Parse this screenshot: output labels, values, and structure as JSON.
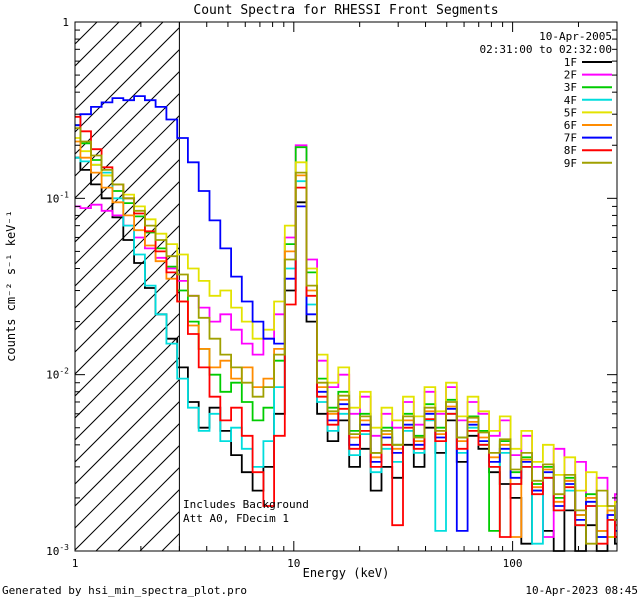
{
  "page": {
    "title": "Count Spectra for RHESSI Front Segments",
    "date_label": "10-Apr-2005",
    "time_range": "02:31:00 to 02:32:00",
    "includes_background": "Includes Background",
    "att_label": "Att A0, FDecim 1",
    "footer_left": "Generated by hsi_min_spectra_plot.pro",
    "footer_right": "10-Apr-2023 08:45"
  },
  "chart_data": {
    "type": "line",
    "mode": "histogram-step",
    "title": "Count Spectra for RHESSI Front Segments",
    "xlabel": "Energy (keV)",
    "ylabel": "counts cm⁻² s⁻¹ keV⁻¹",
    "xscale": "log",
    "yscale": "log",
    "xlim": [
      1,
      300
    ],
    "ylim": [
      0.001,
      1.0
    ],
    "grid": false,
    "legend_position": "upper-right",
    "hatch_region_kev": [
      1,
      3
    ],
    "x": [
      1.0,
      1.12,
      1.25,
      1.4,
      1.57,
      1.76,
      1.97,
      2.21,
      2.47,
      2.77,
      3.1,
      3.47,
      3.89,
      4.36,
      4.88,
      5.47,
      6.12,
      6.86,
      7.68,
      8.6,
      9.63,
      10.8,
      12.1,
      13.5,
      15.1,
      16.9,
      19.0,
      21.2,
      23.8,
      26.6,
      29.8,
      33.4,
      37.4,
      41.9,
      46.9,
      52.5,
      58.8,
      65.9,
      73.8,
      82.6,
      92.5,
      103.6,
      116.0,
      130.0,
      145.6,
      163.0,
      182.6,
      204.5,
      229.0,
      256.5,
      287.2,
      300.0
    ],
    "series": [
      {
        "name": "1F",
        "color": "#000000",
        "values": [
          0.17,
          0.145,
          0.12,
          0.1,
          0.078,
          0.058,
          0.043,
          0.031,
          0.022,
          0.016,
          0.011,
          0.007,
          0.005,
          0.0065,
          0.0048,
          0.0035,
          0.0028,
          0.0022,
          0.003,
          0.006,
          0.03,
          0.095,
          0.02,
          0.006,
          0.0042,
          0.0055,
          0.003,
          0.0038,
          0.0022,
          0.003,
          0.0026,
          0.004,
          0.003,
          0.005,
          0.0036,
          0.0055,
          0.0032,
          0.0045,
          0.0038,
          0.0028,
          0.0024,
          0.002,
          0.0011,
          0.0022,
          0.0013,
          0.001,
          0.0017,
          0.001,
          0.0014,
          0.001,
          0.0012,
          0.0011
        ]
      },
      {
        "name": "2F",
        "color": "#ff00ff",
        "values": [
          0.09,
          0.088,
          0.092,
          0.085,
          0.08,
          0.07,
          0.06,
          0.052,
          0.046,
          0.04,
          0.034,
          0.028,
          0.024,
          0.02,
          0.022,
          0.018,
          0.015,
          0.013,
          0.016,
          0.022,
          0.06,
          0.2,
          0.045,
          0.012,
          0.0085,
          0.01,
          0.006,
          0.0075,
          0.0045,
          0.006,
          0.005,
          0.007,
          0.0052,
          0.008,
          0.006,
          0.0085,
          0.0055,
          0.007,
          0.006,
          0.0045,
          0.0055,
          0.0035,
          0.0045,
          0.003,
          0.0012,
          0.0038,
          0.0025,
          0.0032,
          0.002,
          0.0026,
          0.0016,
          0.0021
        ]
      },
      {
        "name": "3F",
        "color": "#00cc00",
        "values": [
          0.26,
          0.205,
          0.165,
          0.135,
          0.11,
          0.094,
          0.079,
          0.064,
          0.052,
          0.041,
          0.03,
          0.02,
          0.014,
          0.01,
          0.008,
          0.009,
          0.007,
          0.0055,
          0.0065,
          0.012,
          0.055,
          0.195,
          0.038,
          0.0095,
          0.0065,
          0.008,
          0.0048,
          0.006,
          0.0036,
          0.005,
          0.004,
          0.006,
          0.0045,
          0.0068,
          0.005,
          0.0072,
          0.0044,
          0.0058,
          0.0048,
          0.0013,
          0.0042,
          0.0028,
          0.0034,
          0.0024,
          0.003,
          0.002,
          0.0026,
          0.0016,
          0.0021,
          0.0013,
          0.0017,
          0.0014
        ]
      },
      {
        "name": "4F",
        "color": "#00dddd",
        "values": [
          0.17,
          0.162,
          0.155,
          0.14,
          0.1,
          0.07,
          0.048,
          0.032,
          0.022,
          0.015,
          0.0095,
          0.0065,
          0.0048,
          0.006,
          0.0042,
          0.005,
          0.0038,
          0.003,
          0.0042,
          0.0085,
          0.04,
          0.125,
          0.025,
          0.007,
          0.0048,
          0.006,
          0.0035,
          0.0046,
          0.0028,
          0.0038,
          0.0032,
          0.0048,
          0.0036,
          0.0055,
          0.0013,
          0.006,
          0.0036,
          0.005,
          0.004,
          0.003,
          0.0036,
          0.0024,
          0.003,
          0.0011,
          0.0026,
          0.0017,
          0.0022,
          0.0014,
          0.0018,
          0.0012,
          0.0015,
          0.0012
        ]
      },
      {
        "name": "5F",
        "color": "#e3e300",
        "values": [
          0.22,
          0.185,
          0.155,
          0.135,
          0.12,
          0.105,
          0.09,
          0.076,
          0.063,
          0.055,
          0.048,
          0.04,
          0.034,
          0.028,
          0.03,
          0.024,
          0.02,
          0.016,
          0.018,
          0.026,
          0.07,
          0.16,
          0.04,
          0.013,
          0.009,
          0.011,
          0.0065,
          0.008,
          0.005,
          0.0065,
          0.0055,
          0.0075,
          0.0058,
          0.0085,
          0.0062,
          0.009,
          0.0058,
          0.0075,
          0.0062,
          0.0048,
          0.0058,
          0.0038,
          0.0048,
          0.0032,
          0.004,
          0.0027,
          0.0034,
          0.0022,
          0.0028,
          0.0018,
          0.0012,
          0.0019
        ]
      },
      {
        "name": "6F",
        "color": "#ff8c00",
        "values": [
          0.21,
          0.17,
          0.14,
          0.115,
          0.095,
          0.08,
          0.066,
          0.054,
          0.044,
          0.035,
          0.026,
          0.019,
          0.014,
          0.011,
          0.012,
          0.0095,
          0.011,
          0.0085,
          0.0095,
          0.014,
          0.05,
          0.135,
          0.03,
          0.0085,
          0.006,
          0.0072,
          0.0044,
          0.0055,
          0.0034,
          0.0046,
          0.0038,
          0.0055,
          0.0042,
          0.0062,
          0.0046,
          0.0066,
          0.0042,
          0.0054,
          0.0044,
          0.0034,
          0.004,
          0.0012,
          0.0033,
          0.0023,
          0.0029,
          0.0019,
          0.0025,
          0.0016,
          0.002,
          0.0013,
          0.0017,
          0.0014
        ]
      },
      {
        "name": "7F",
        "color": "#0000ff",
        "values": [
          0.26,
          0.3,
          0.33,
          0.35,
          0.37,
          0.36,
          0.38,
          0.36,
          0.33,
          0.28,
          0.22,
          0.16,
          0.11,
          0.075,
          0.052,
          0.036,
          0.026,
          0.02,
          0.016,
          0.015,
          0.035,
          0.09,
          0.022,
          0.008,
          0.0055,
          0.0068,
          0.004,
          0.0052,
          0.0032,
          0.0044,
          0.0036,
          0.0052,
          0.004,
          0.006,
          0.0044,
          0.0064,
          0.0013,
          0.0052,
          0.0042,
          0.0032,
          0.0038,
          0.0026,
          0.0032,
          0.0022,
          0.0028,
          0.0018,
          0.0024,
          0.0015,
          0.0019,
          0.0012,
          0.0016,
          0.0013
        ]
      },
      {
        "name": "8F",
        "color": "#ff0000",
        "values": [
          0.29,
          0.24,
          0.19,
          0.15,
          0.12,
          0.1,
          0.082,
          0.065,
          0.05,
          0.038,
          0.026,
          0.017,
          0.011,
          0.0075,
          0.0055,
          0.0065,
          0.0045,
          0.0028,
          0.0018,
          0.0045,
          0.025,
          0.115,
          0.028,
          0.0075,
          0.0052,
          0.0064,
          0.0038,
          0.0048,
          0.003,
          0.004,
          0.0014,
          0.005,
          0.0038,
          0.0056,
          0.0042,
          0.006,
          0.0038,
          0.0048,
          0.004,
          0.003,
          0.0012,
          0.0024,
          0.003,
          0.0021,
          0.0026,
          0.0017,
          0.0023,
          0.0014,
          0.0018,
          0.0011,
          0.0015,
          0.0012
        ]
      },
      {
        "name": "9F",
        "color": "#a0a000",
        "values": [
          0.25,
          0.21,
          0.175,
          0.145,
          0.12,
          0.1,
          0.085,
          0.07,
          0.058,
          0.047,
          0.037,
          0.028,
          0.021,
          0.016,
          0.013,
          0.011,
          0.009,
          0.0075,
          0.0085,
          0.013,
          0.045,
          0.14,
          0.032,
          0.009,
          0.0062,
          0.0076,
          0.0046,
          0.0058,
          0.0036,
          0.0048,
          0.004,
          0.0058,
          0.0044,
          0.0065,
          0.0048,
          0.007,
          0.0044,
          0.0057,
          0.0047,
          0.0036,
          0.0043,
          0.0029,
          0.0036,
          0.0025,
          0.0031,
          0.0021,
          0.0027,
          0.0017,
          0.0011,
          0.0022,
          0.0018,
          0.0015
        ]
      }
    ]
  }
}
